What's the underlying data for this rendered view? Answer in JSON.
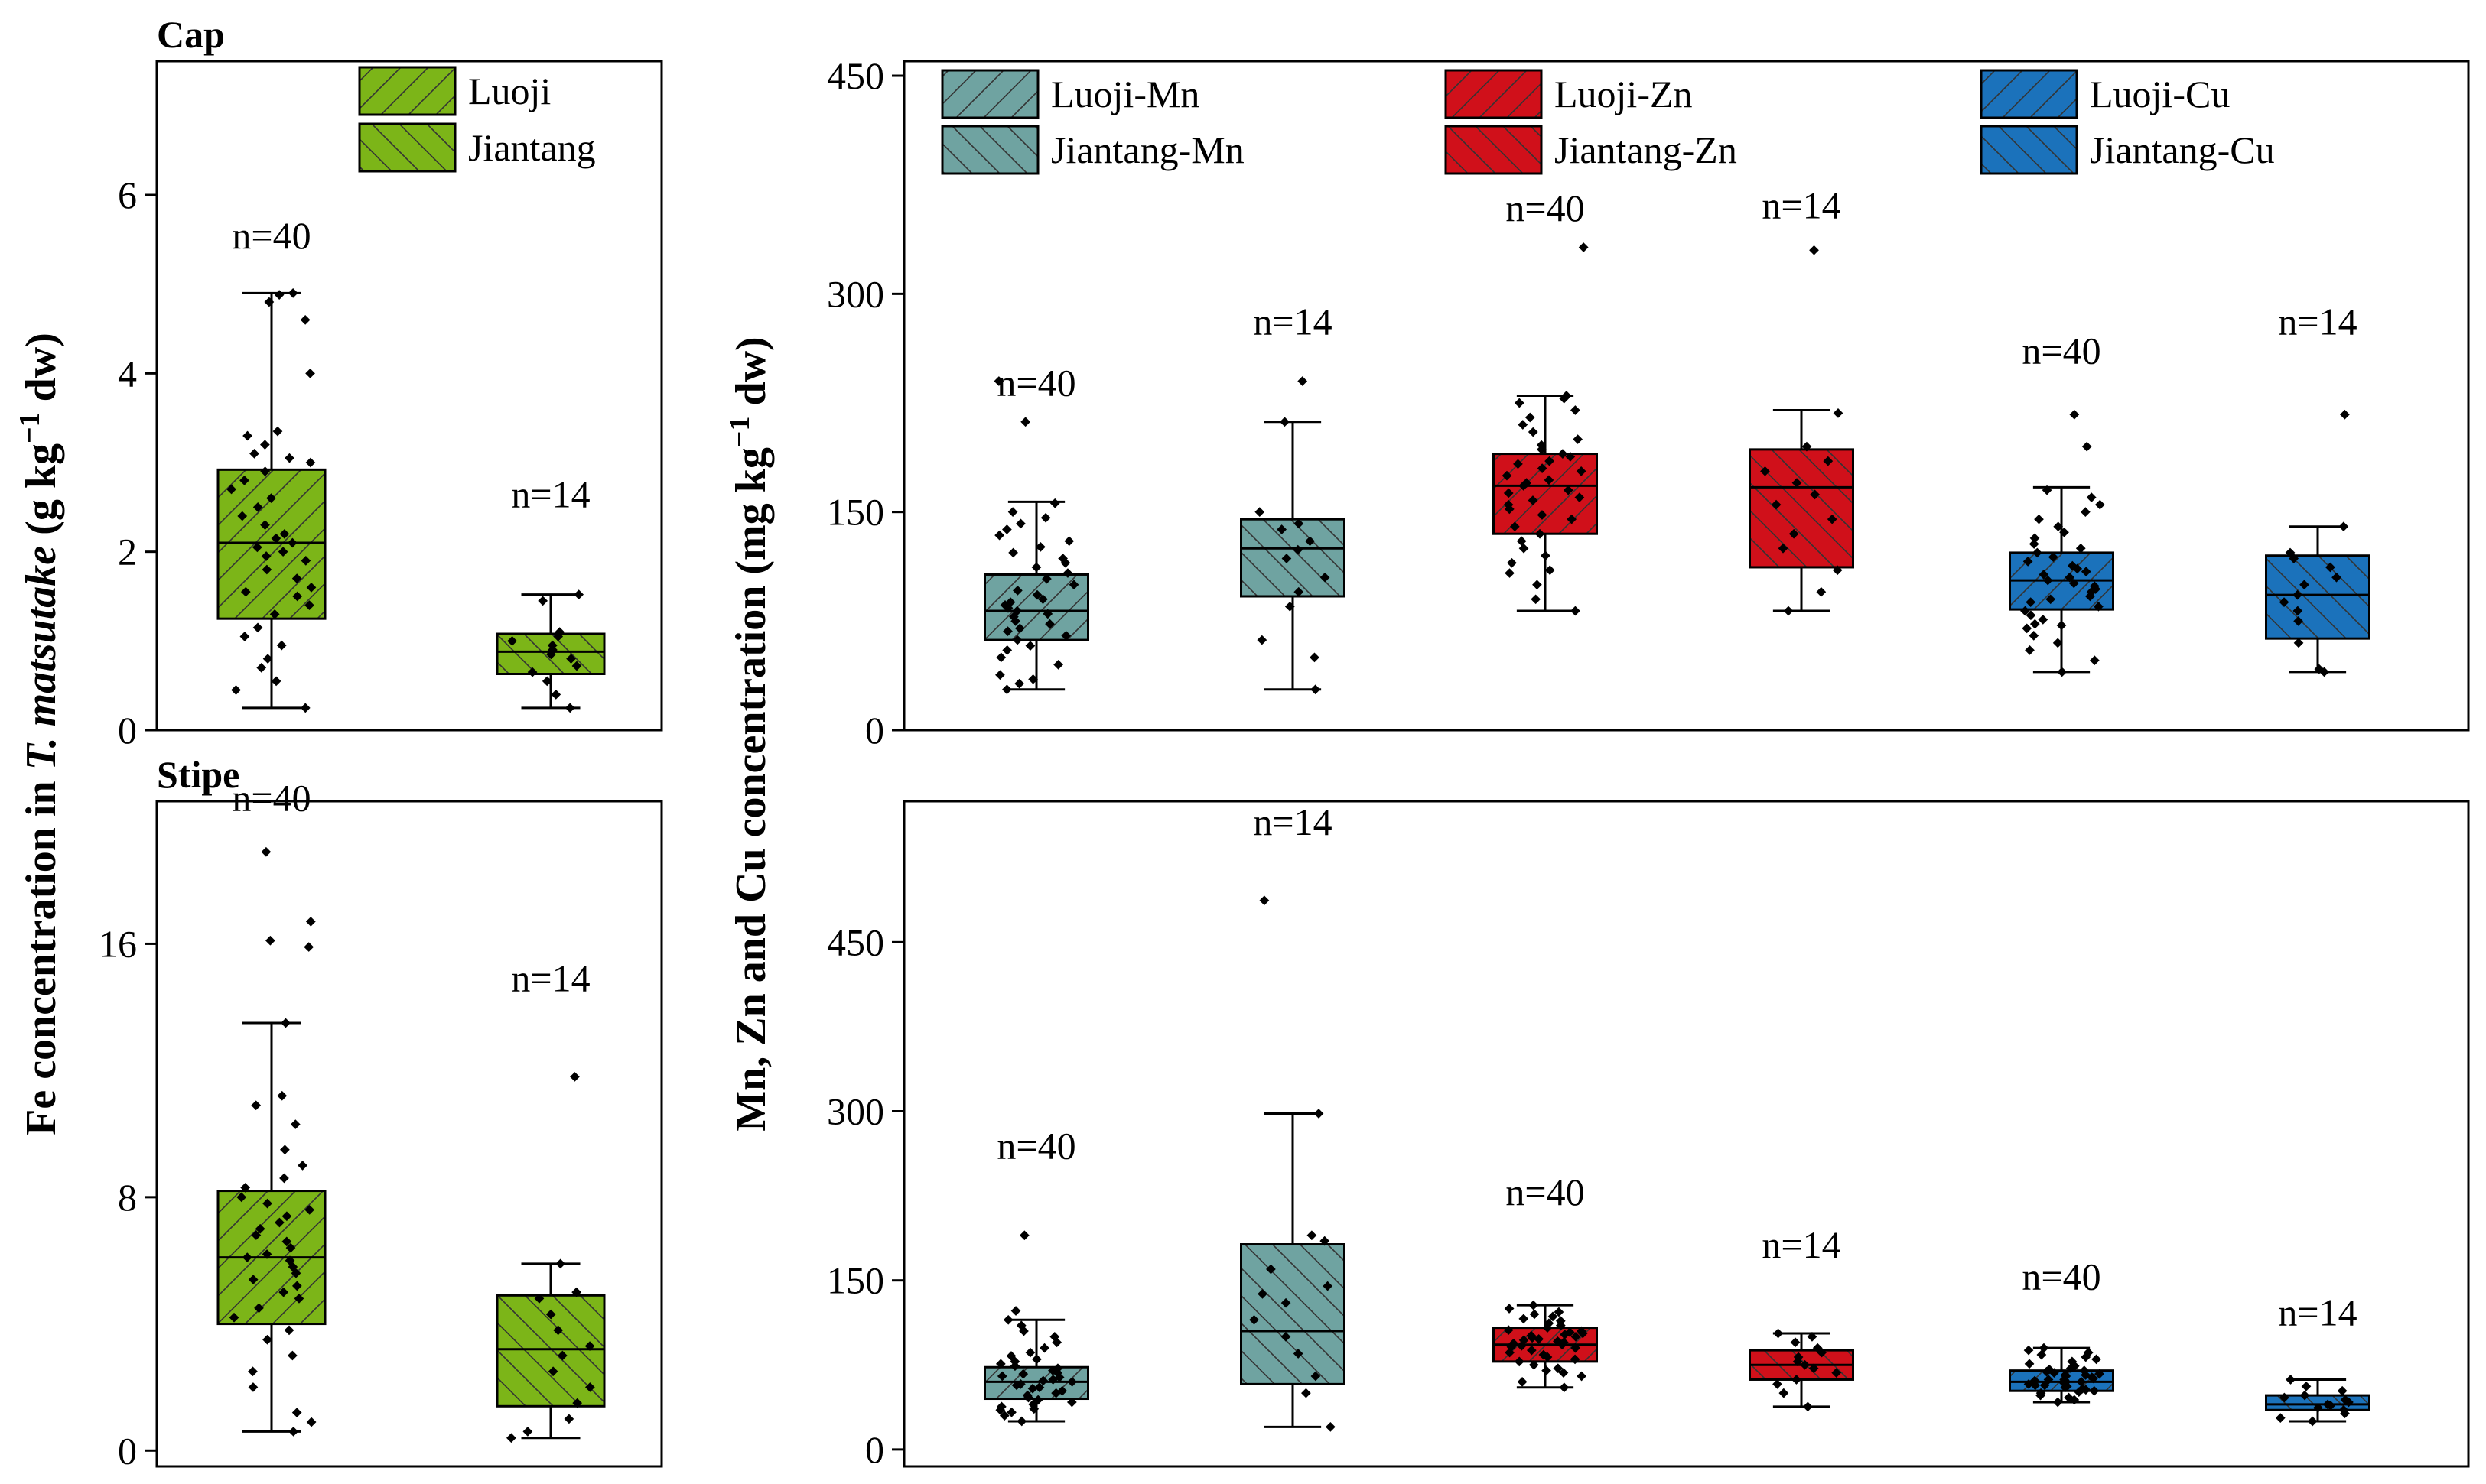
{
  "figure": {
    "y_label_left_pre": "Fe concentration in ",
    "y_label_left_italic": "T. matsutake",
    "y_label_left_post": " (g kg",
    "y_label_left_sup": "−1",
    "y_label_left_end": " dw)",
    "y_label_right_pre": "Mn, Zn and Cu concentration (mg kg",
    "y_label_right_sup": "−1",
    "y_label_right_end": " dw)"
  },
  "colors": {
    "green": "#7cb518",
    "teal": "#6fa3a1",
    "red": "#d0101a",
    "blue": "#1b72bb"
  },
  "chart_data": [
    {
      "id": "cap-fe",
      "type": "box",
      "title": "Cap",
      "ylim": [
        0,
        7.5
      ],
      "yticks": [
        0,
        2,
        4,
        6
      ],
      "legend": [
        "Luoji",
        "Jiantang"
      ],
      "series": [
        {
          "name": "Luoji",
          "color": "green",
          "hatch": "fwd",
          "n": "n=40",
          "label_at": 5.4,
          "min": 0.25,
          "q1": 1.25,
          "median": 2.1,
          "q3": 2.92,
          "max": 4.9,
          "points": [
            0.25,
            0.45,
            0.55,
            0.7,
            0.8,
            0.95,
            1.05,
            1.15,
            1.3,
            1.4,
            1.5,
            1.55,
            1.6,
            1.7,
            1.8,
            1.9,
            1.95,
            2.0,
            2.05,
            2.1,
            2.15,
            2.2,
            2.3,
            2.4,
            2.5,
            2.6,
            2.7,
            2.8,
            2.9,
            3.0,
            3.05,
            3.1,
            3.2,
            3.3,
            3.35,
            4.0,
            4.6,
            4.8,
            4.9,
            4.88
          ]
        },
        {
          "name": "Jiantang",
          "color": "green",
          "hatch": "back",
          "n": "n=14",
          "label_at": 2.5,
          "min": 0.25,
          "q1": 0.63,
          "median": 0.88,
          "q3": 1.08,
          "max": 1.52,
          "points": [
            0.25,
            0.4,
            0.55,
            0.65,
            0.72,
            0.8,
            0.85,
            0.9,
            0.95,
            1.0,
            1.05,
            1.1,
            1.45,
            1.52
          ]
        }
      ]
    },
    {
      "id": "stipe-fe",
      "type": "box",
      "title": "Stipe",
      "ylim": [
        -0.5,
        20.5
      ],
      "yticks": [
        0,
        8,
        16
      ],
      "series": [
        {
          "name": "Luoji",
          "color": "green",
          "hatch": "fwd",
          "n": "n=40",
          "label_at": 20.2,
          "min": 0.6,
          "q1": 4.0,
          "median": 6.1,
          "q3": 8.2,
          "max": 13.5,
          "points": [
            0.6,
            0.9,
            1.2,
            2.0,
            2.5,
            3.0,
            3.5,
            3.8,
            4.2,
            4.5,
            4.8,
            5.0,
            5.2,
            5.4,
            5.6,
            5.8,
            6.0,
            6.1,
            6.2,
            6.4,
            6.6,
            6.8,
            7.0,
            7.2,
            7.4,
            7.6,
            7.8,
            8.0,
            8.3,
            8.6,
            9.0,
            9.5,
            10.3,
            10.9,
            11.2,
            15.9,
            16.1,
            16.7,
            18.9,
            13.5
          ]
        },
        {
          "name": "Jiantang",
          "color": "green",
          "hatch": "back",
          "n": "n=14",
          "label_at": 14.5,
          "min": 0.4,
          "q1": 1.4,
          "median": 3.2,
          "q3": 4.9,
          "max": 5.9,
          "points": [
            0.4,
            0.6,
            1.0,
            1.5,
            2.0,
            2.5,
            3.0,
            3.3,
            3.8,
            4.3,
            4.8,
            5.0,
            5.9,
            11.8
          ]
        }
      ]
    },
    {
      "id": "cap-mn-zn-cu",
      "type": "box",
      "ylim": [
        0,
        460
      ],
      "yticks": [
        0,
        150,
        300,
        450
      ],
      "legend": [
        "Luoji-Mn",
        "Jiantang-Mn",
        "Luoji-Zn",
        "Jiantang-Zn",
        "Luoji-Cu",
        "Jiantang-Cu"
      ],
      "series": [
        {
          "name": "Luoji-Mn",
          "color": "teal",
          "hatch": "fwd",
          "n": "n=40",
          "label_at": 230,
          "min": 28,
          "q1": 62,
          "median": 82,
          "q3": 107,
          "max": 157,
          "points": [
            28,
            32,
            38,
            45,
            50,
            55,
            58,
            62,
            65,
            68,
            70,
            73,
            75,
            78,
            80,
            82,
            84,
            86,
            88,
            90,
            93,
            96,
            100,
            104,
            108,
            112,
            115,
            118,
            122,
            126,
            130,
            134,
            138,
            142,
            146,
            150,
            156,
            212,
            240,
            35
          ]
        },
        {
          "name": "Jiantang-Mn",
          "color": "teal",
          "hatch": "back",
          "n": "n=14",
          "label_at": 272,
          "min": 28,
          "q1": 92,
          "median": 125,
          "q3": 145,
          "max": 212,
          "points": [
            28,
            50,
            62,
            85,
            95,
            105,
            118,
            124,
            130,
            138,
            142,
            150,
            212,
            240
          ]
        },
        {
          "name": "Luoji-Zn",
          "color": "red",
          "hatch": "fwd",
          "n": "n=40",
          "label_at": 350,
          "min": 82,
          "q1": 135,
          "median": 168,
          "q3": 190,
          "max": 230,
          "points": [
            82,
            90,
            100,
            108,
            115,
            120,
            125,
            130,
            135,
            140,
            145,
            148,
            152,
            155,
            158,
            160,
            163,
            165,
            168,
            170,
            172,
            175,
            178,
            180,
            183,
            185,
            188,
            190,
            193,
            196,
            200,
            205,
            210,
            215,
            220,
            225,
            230,
            228,
            332,
            110
          ]
        },
        {
          "name": "Jiantang-Zn",
          "color": "red",
          "hatch": "back",
          "n": "n=14",
          "label_at": 352,
          "min": 82,
          "q1": 112,
          "median": 167,
          "q3": 193,
          "max": 220,
          "points": [
            82,
            95,
            110,
            125,
            135,
            145,
            155,
            162,
            170,
            178,
            185,
            195,
            218,
            330
          ]
        },
        {
          "name": "Luoji-Cu",
          "color": "blue",
          "hatch": "fwd",
          "n": "n=40",
          "label_at": 252,
          "min": 40,
          "q1": 83,
          "median": 103,
          "q3": 122,
          "max": 167,
          "points": [
            40,
            48,
            55,
            60,
            65,
            70,
            73,
            76,
            79,
            82,
            85,
            88,
            90,
            92,
            95,
            97,
            99,
            101,
            103,
            105,
            107,
            109,
            111,
            113,
            116,
            119,
            122,
            125,
            128,
            132,
            136,
            140,
            145,
            150,
            155,
            160,
            165,
            195,
            217,
            72
          ]
        },
        {
          "name": "Jiantang-Cu",
          "color": "blue",
          "hatch": "back",
          "n": "n=14",
          "label_at": 272,
          "min": 40,
          "q1": 63,
          "median": 93,
          "q3": 120,
          "max": 140,
          "points": [
            40,
            42,
            60,
            75,
            82,
            88,
            93,
            100,
            105,
            112,
            118,
            122,
            140,
            217
          ]
        }
      ]
    },
    {
      "id": "stipe-mn-zn-cu",
      "type": "box",
      "ylim": [
        -15,
        575
      ],
      "yticks": [
        0,
        150,
        300,
        450
      ],
      "series": [
        {
          "name": "Luoji-Mn",
          "color": "teal",
          "hatch": "fwd",
          "n": "n=40",
          "label_at": 258,
          "min": 25,
          "q1": 45,
          "median": 60,
          "q3": 73,
          "max": 115,
          "points": [
            25,
            30,
            33,
            36,
            38,
            40,
            42,
            44,
            46,
            48,
            50,
            52,
            54,
            55,
            57,
            58,
            60,
            61,
            62,
            64,
            65,
            67,
            68,
            70,
            72,
            74,
            76,
            78,
            80,
            83,
            86,
            90,
            95,
            100,
            105,
            110,
            115,
            123,
            190,
            35
          ]
        },
        {
          "name": "Jiantang-Mn",
          "color": "teal",
          "hatch": "back",
          "n": "n=14",
          "label_at": 545,
          "min": 20,
          "q1": 58,
          "median": 105,
          "q3": 182,
          "max": 298,
          "points": [
            20,
            50,
            65,
            85,
            100,
            115,
            130,
            138,
            145,
            160,
            185,
            190,
            298,
            487
          ]
        },
        {
          "name": "Luoji-Zn",
          "color": "red",
          "hatch": "fwd",
          "n": "n=40",
          "label_at": 217,
          "min": 55,
          "q1": 78,
          "median": 93,
          "q3": 108,
          "max": 128,
          "points": [
            55,
            60,
            65,
            68,
            72,
            75,
            78,
            80,
            82,
            84,
            86,
            88,
            90,
            91,
            92,
            93,
            94,
            95,
            96,
            97,
            98,
            99,
            100,
            101,
            102,
            103,
            104,
            105,
            106,
            108,
            110,
            112,
            114,
            116,
            118,
            120,
            122,
            125,
            128,
            70
          ]
        },
        {
          "name": "Jiantang-Zn",
          "color": "red",
          "hatch": "back",
          "n": "n=14",
          "label_at": 170,
          "min": 38,
          "q1": 62,
          "median": 75,
          "q3": 88,
          "max": 103,
          "points": [
            38,
            50,
            58,
            62,
            68,
            72,
            75,
            78,
            82,
            86,
            90,
            95,
            100,
            103
          ]
        },
        {
          "name": "Luoji-Cu",
          "color": "blue",
          "hatch": "fwd",
          "n": "n=40",
          "label_at": 142,
          "min": 42,
          "q1": 52,
          "median": 60,
          "q3": 70,
          "max": 90,
          "points": [
            42,
            44,
            46,
            48,
            50,
            51,
            52,
            53,
            54,
            55,
            56,
            57,
            58,
            59,
            60,
            60,
            61,
            62,
            63,
            64,
            65,
            66,
            67,
            68,
            69,
            70,
            71,
            72,
            74,
            76,
            78,
            80,
            82,
            84,
            86,
            88,
            90,
            62,
            57,
            66
          ]
        },
        {
          "name": "Jiantang-Cu",
          "color": "blue",
          "hatch": "back",
          "n": "n=14",
          "label_at": 110,
          "min": 25,
          "q1": 35,
          "median": 40,
          "q3": 48,
          "max": 62,
          "points": [
            25,
            28,
            32,
            35,
            37,
            39,
            40,
            42,
            44,
            46,
            48,
            52,
            56,
            62
          ]
        }
      ]
    }
  ]
}
